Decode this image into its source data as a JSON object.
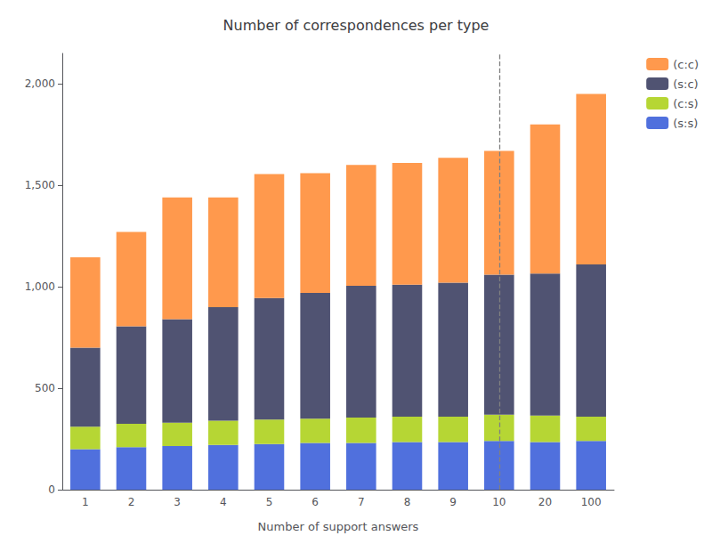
{
  "chart_data": {
    "type": "bar",
    "stacked": true,
    "title": "Number of correspondences per type",
    "xlabel": "Number of support answers",
    "categories": [
      1,
      2,
      3,
      4,
      5,
      6,
      7,
      8,
      9,
      10,
      20,
      100
    ],
    "series": [
      {
        "name": "(s:s)",
        "values": [
          200,
          210,
          215,
          220,
          225,
          230,
          230,
          235,
          235,
          240,
          235,
          240
        ]
      },
      {
        "name": "(c:s)",
        "values": [
          110,
          115,
          115,
          120,
          120,
          120,
          125,
          125,
          125,
          130,
          130,
          120
        ]
      },
      {
        "name": "(s:c)",
        "values": [
          390,
          480,
          510,
          560,
          600,
          620,
          650,
          650,
          660,
          690,
          700,
          750
        ]
      },
      {
        "name": "(c:c)",
        "values": [
          445,
          465,
          600,
          540,
          610,
          590,
          595,
          600,
          615,
          610,
          735,
          840
        ]
      }
    ],
    "ylim": [
      0,
      2150
    ],
    "yticks": [
      0,
      500,
      {
        "value": 1000,
        "label": "1,000"
      },
      {
        "value": 1500,
        "label": "1,500"
      },
      {
        "value": 2000,
        "label": "2,000"
      }
    ],
    "grid": false,
    "legend": "right",
    "vline": 10
  }
}
